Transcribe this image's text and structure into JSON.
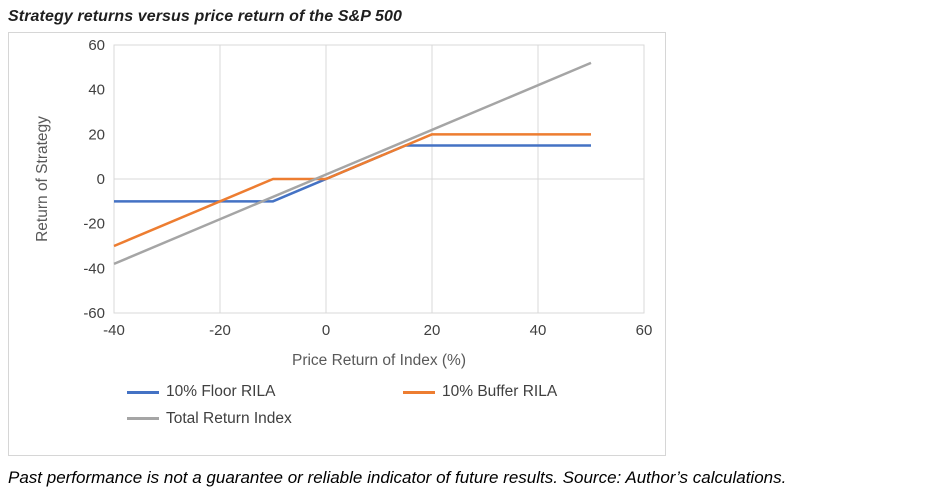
{
  "header": {
    "title": "Strategy returns versus price return of the S&P 500"
  },
  "footer": {
    "text": "Past performance is not a guarantee or reliable indicator of future results. Source: Author’s calculations."
  },
  "chart_data": {
    "type": "line",
    "title": "Strategy returns versus price return of the S&P 500",
    "xlabel": "Price Return of Index (%)",
    "ylabel": "Return of Strategy",
    "xlim": [
      -40,
      60
    ],
    "ylim": [
      -60,
      60
    ],
    "xticks": [
      -40,
      -20,
      0,
      20,
      40,
      60
    ],
    "yticks": [
      -60,
      -40,
      -20,
      0,
      20,
      40,
      60
    ],
    "grid": "vertical-major-gridlines-and-zero-line",
    "gridline_color": "#d9d9d9",
    "legend_position": "bottom-left",
    "series": [
      {
        "name": "10% Floor RILA",
        "color": "#4472C4",
        "points": [
          [
            -40,
            -10
          ],
          [
            -10,
            -10
          ],
          [
            15,
            15
          ],
          [
            50,
            15
          ]
        ]
      },
      {
        "name": "10% Buffer RILA",
        "color": "#ED7D31",
        "points": [
          [
            -40,
            -30
          ],
          [
            -10,
            0
          ],
          [
            0,
            0
          ],
          [
            20,
            20
          ],
          [
            50,
            20
          ]
        ]
      },
      {
        "name": "Total Return Index",
        "color": "#A5A5A5",
        "points": [
          [
            -40,
            -38
          ],
          [
            50,
            52
          ]
        ]
      }
    ]
  }
}
